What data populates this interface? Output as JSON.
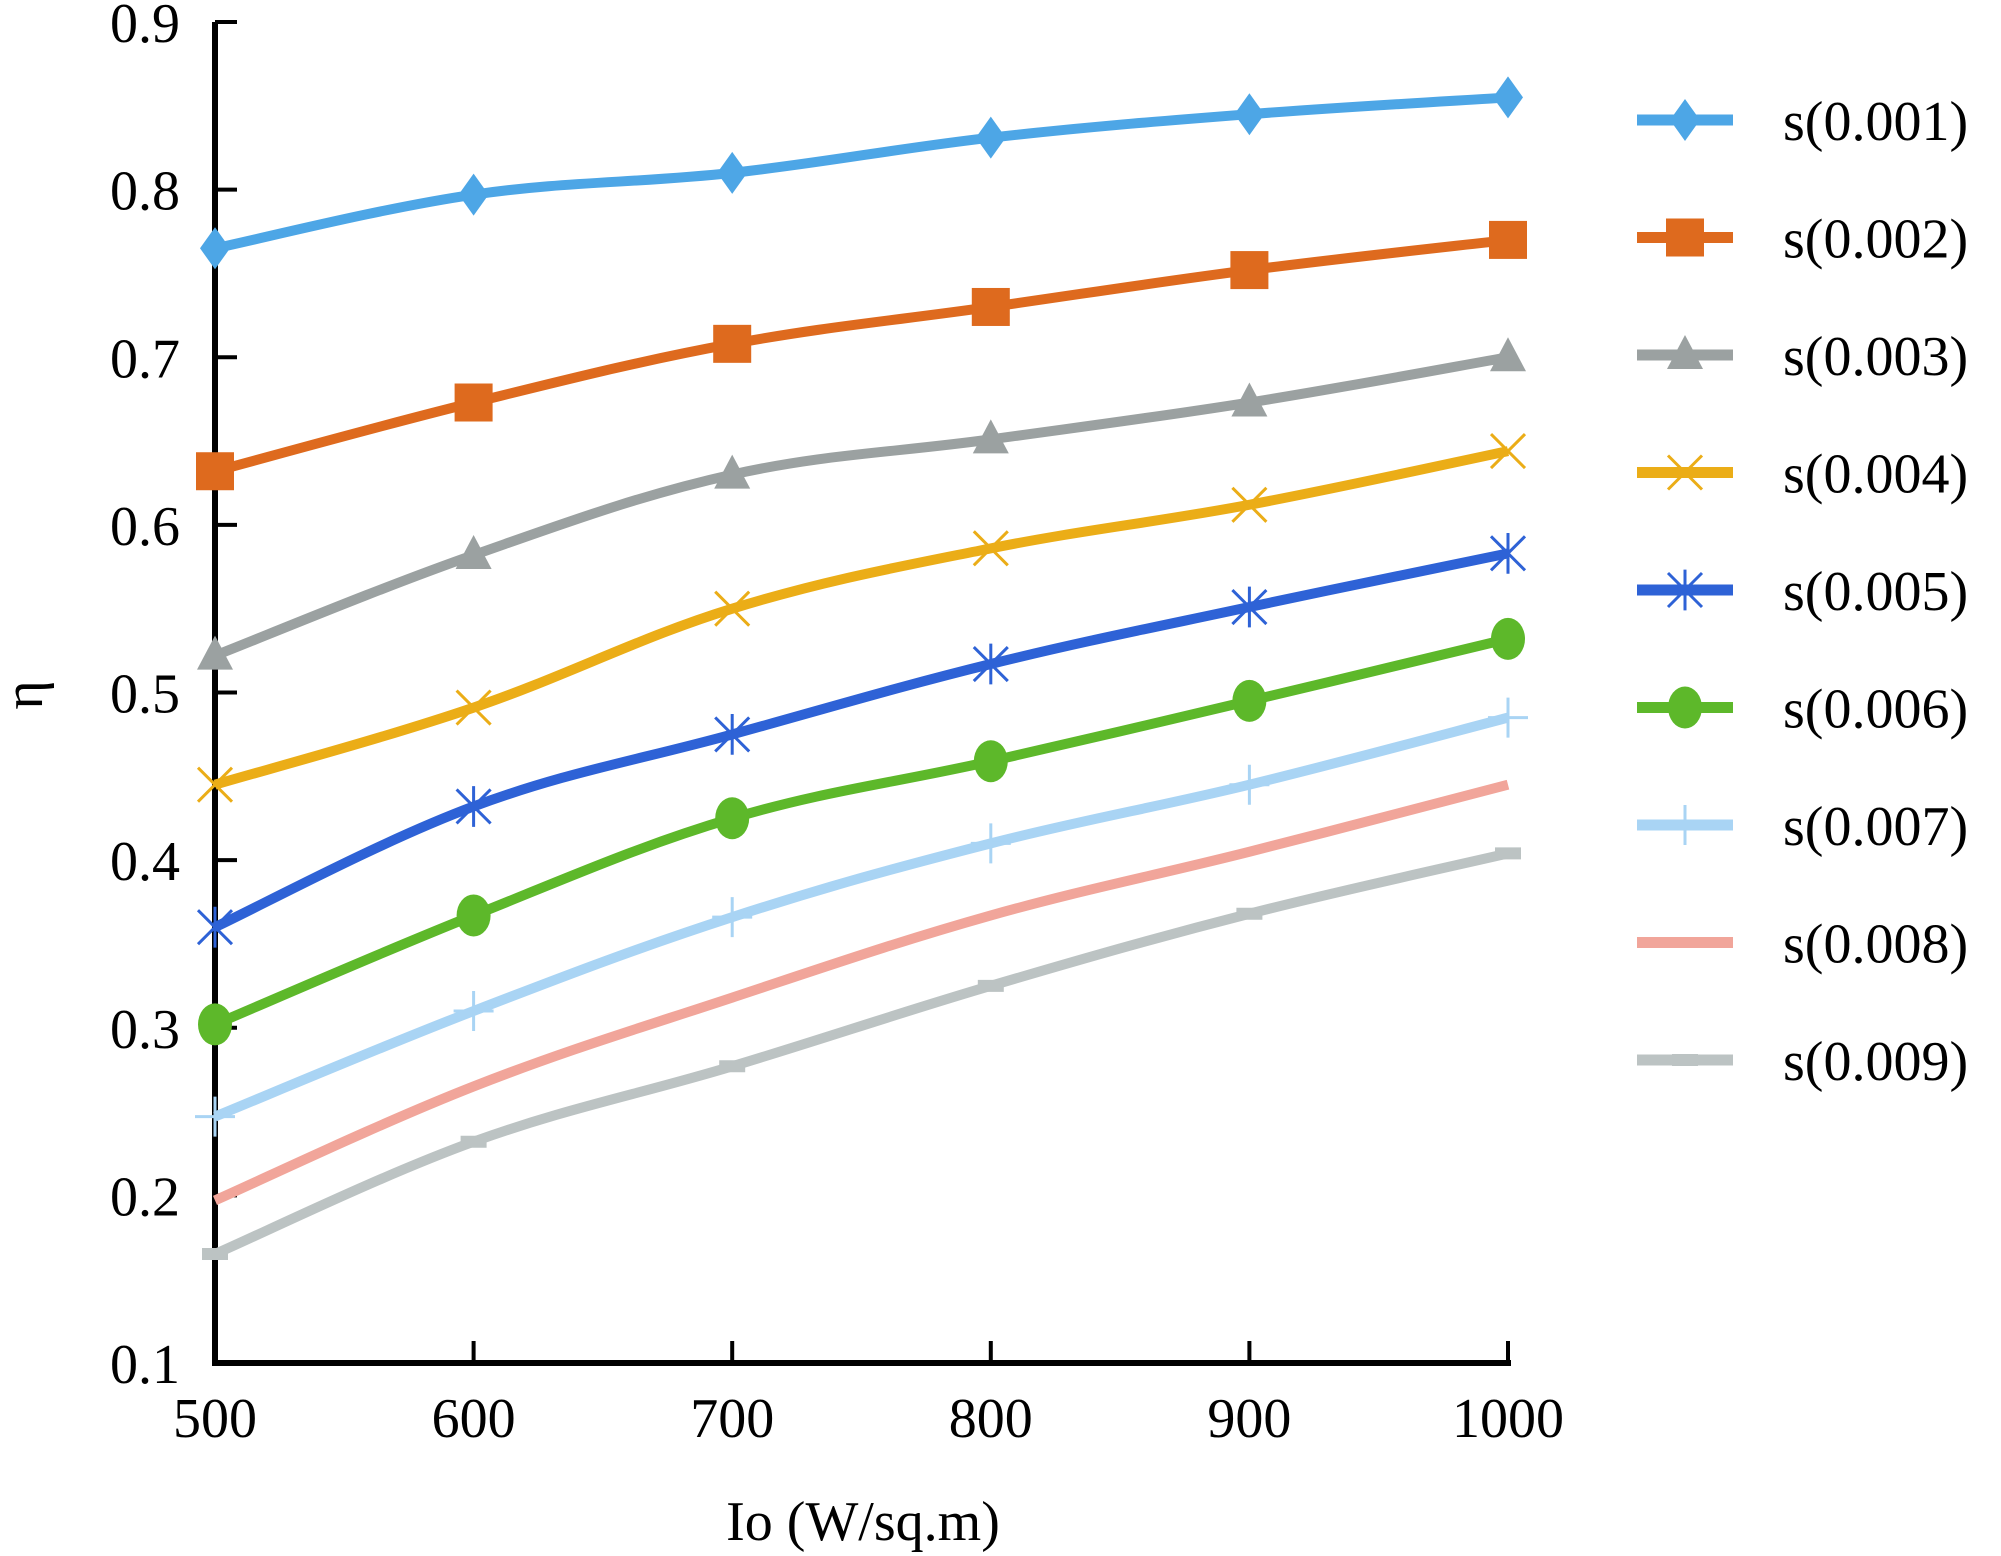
{
  "chart_data": {
    "type": "line",
    "title": "",
    "xlabel": "Io (W/sq.m)",
    "ylabel": "η",
    "x": [
      500,
      600,
      700,
      800,
      900,
      1000
    ],
    "xlim": [
      500,
      1000
    ],
    "ylim": [
      0.1,
      0.9
    ],
    "x_ticks": [
      "500",
      "600",
      "700",
      "800",
      "900",
      "1000"
    ],
    "y_ticks": [
      "0.1",
      "0.2",
      "0.3",
      "0.4",
      "0.5",
      "0.6",
      "0.7",
      "0.8",
      "0.9"
    ],
    "grid": false,
    "legend_position": "right",
    "series": [
      {
        "name": "s(0.001)",
        "color": "#4da6e6",
        "marker": "diamond",
        "values": [
          0.765,
          0.797,
          0.81,
          0.831,
          0.845,
          0.855
        ]
      },
      {
        "name": "s(0.002)",
        "color": "#de6a1e",
        "marker": "square",
        "values": [
          0.632,
          0.673,
          0.708,
          0.73,
          0.752,
          0.77
        ]
      },
      {
        "name": "s(0.003)",
        "color": "#9ba1a1",
        "marker": "triangle",
        "values": [
          0.522,
          0.582,
          0.63,
          0.651,
          0.673,
          0.7
        ]
      },
      {
        "name": "s(0.004)",
        "color": "#ebad17",
        "marker": "x",
        "values": [
          0.445,
          0.491,
          0.55,
          0.586,
          0.612,
          0.644
        ]
      },
      {
        "name": "s(0.005)",
        "color": "#2e62d6",
        "marker": "asterisk",
        "values": [
          0.36,
          0.432,
          0.475,
          0.517,
          0.551,
          0.583
        ]
      },
      {
        "name": "s(0.006)",
        "color": "#5db82a",
        "marker": "circle",
        "values": [
          0.302,
          0.367,
          0.425,
          0.459,
          0.495,
          0.532
        ]
      },
      {
        "name": "s(0.007)",
        "color": "#a9d4f4",
        "marker": "plus",
        "values": [
          0.247,
          0.31,
          0.366,
          0.41,
          0.445,
          0.485
        ]
      },
      {
        "name": "s(0.008)",
        "color": "#f1a59a",
        "marker": "none",
        "values": [
          0.197,
          0.265,
          0.318,
          0.367,
          0.405,
          0.445
        ]
      },
      {
        "name": "s(0.009)",
        "color": "#bcc3c3",
        "marker": "dash",
        "values": [
          0.165,
          0.232,
          0.277,
          0.325,
          0.368,
          0.404
        ]
      }
    ]
  }
}
